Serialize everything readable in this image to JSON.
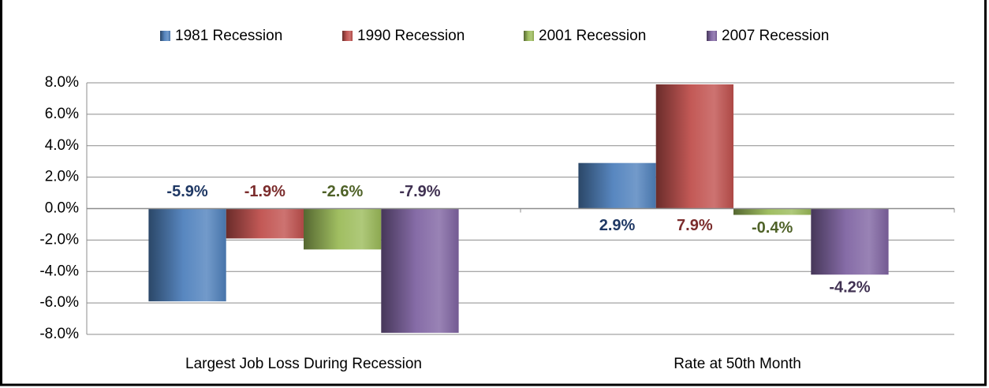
{
  "chart_data": {
    "type": "bar",
    "categories": [
      "Largest Job Loss During Recession",
      "Rate at 50th Month"
    ],
    "series": [
      {
        "name": "1981 Recession",
        "color": "#4f81bd",
        "label_color": "#1f3864",
        "values": [
          -5.9,
          2.9
        ],
        "value_labels": [
          "-5.9%",
          "2.9%"
        ]
      },
      {
        "name": "1990 Recession",
        "color": "#c0504d",
        "label_color": "#7b2c2c",
        "values": [
          -1.9,
          7.9
        ],
        "value_labels": [
          "-1.9%",
          "7.9%"
        ]
      },
      {
        "name": "2001 Recession",
        "color": "#9bbb59",
        "label_color": "#4f6228",
        "values": [
          -2.6,
          -0.4
        ],
        "value_labels": [
          "-2.6%",
          "-0.4%"
        ]
      },
      {
        "name": "2007 Recession",
        "color": "#8064a2",
        "label_color": "#403152",
        "values": [
          -7.9,
          -4.2
        ],
        "value_labels": [
          "-7.9%",
          "-4.2%"
        ]
      }
    ],
    "ylim": [
      -8,
      8
    ],
    "yticks": [
      {
        "value": -8,
        "label": "-8.0%"
      },
      {
        "value": -6,
        "label": "-6.0%"
      },
      {
        "value": -4,
        "label": "-4.0%"
      },
      {
        "value": -2,
        "label": "-2.0%"
      },
      {
        "value": 0,
        "label": "0.0%"
      },
      {
        "value": 2,
        "label": "2.0%"
      },
      {
        "value": 4,
        "label": "4.0%"
      },
      {
        "value": 6,
        "label": "6.0%"
      },
      {
        "value": 8,
        "label": "8.0%"
      }
    ],
    "grid": true,
    "legend": "top"
  }
}
